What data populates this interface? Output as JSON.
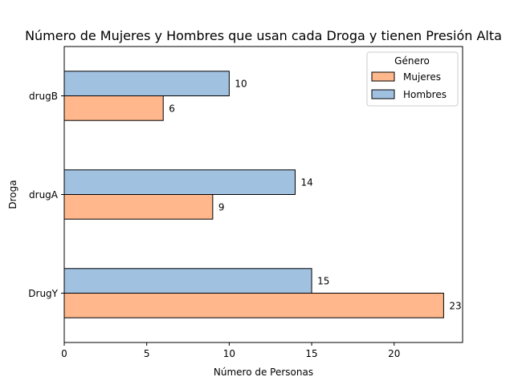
{
  "chart_data": {
    "type": "bar",
    "orientation": "horizontal",
    "title": "Número de Mujeres y Hombres que usan cada Droga y tienen Presión Alta",
    "xlabel": "Número de Personas",
    "ylabel": "Droga",
    "categories": [
      "DrugY",
      "drugA",
      "drugB"
    ],
    "series": [
      {
        "name": "Mujeres",
        "values": [
          23,
          9,
          6
        ],
        "color": "#ffb78b"
      },
      {
        "name": "Hombres",
        "values": [
          15,
          14,
          10
        ],
        "color": "#a1c1e1"
      }
    ],
    "xlim": [
      0,
      24.15
    ],
    "xticks": [
      0,
      5,
      10,
      15,
      20
    ],
    "grid": false,
    "legend": {
      "title": "Género",
      "placement": "upper right"
    }
  }
}
